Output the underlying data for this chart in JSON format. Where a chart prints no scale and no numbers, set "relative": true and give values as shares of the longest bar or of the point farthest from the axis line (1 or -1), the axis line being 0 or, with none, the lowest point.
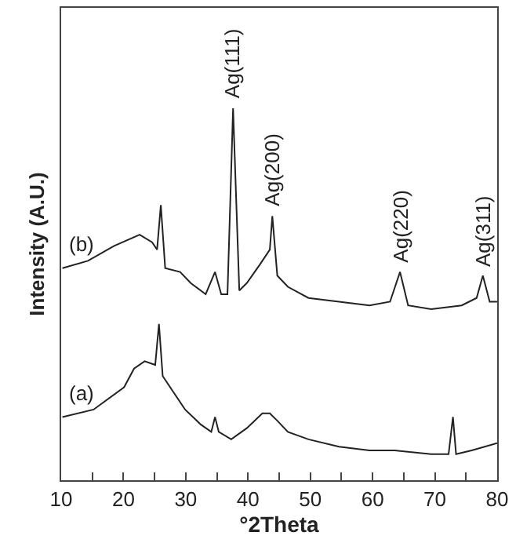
{
  "chart_data": {
    "type": "line",
    "relative": true,
    "xlabel": "°2Theta",
    "ylabel": "Intensity (A.U.)",
    "xlim": [
      10,
      80
    ],
    "xticks": [
      10,
      {
        "value": 15,
        "label": null
      },
      20,
      {
        "value": 25,
        "label": null
      },
      30,
      {
        "value": 35,
        "label": null
      },
      40,
      {
        "value": 45,
        "label": null
      },
      50,
      {
        "value": 55,
        "label": null
      },
      60,
      {
        "value": 65,
        "label": null
      },
      70,
      {
        "value": 75,
        "label": null
      },
      80
    ],
    "grid": false,
    "legend": false,
    "marker": "none",
    "line_style": "solid",
    "series": [
      {
        "name": "(b)",
        "color": "#222222",
        "x": [
          10.2,
          14.3,
          18.5,
          22.6,
          24.6,
          25.4,
          26,
          26.7,
          29.1,
          30.8,
          33.2,
          34.7,
          35.7,
          36.7,
          37.6,
          38.6,
          39.8,
          41.9,
          43.5,
          43.9,
          44.7,
          46.4,
          49.7,
          54.6,
          59.5,
          62.8,
          64.4,
          65.7,
          69.4,
          74.3,
          76.7,
          77.7,
          78.8,
          80
        ],
        "values": [
          0.57,
          0.59,
          0.63,
          0.66,
          0.64,
          0.62,
          0.74,
          0.57,
          0.56,
          0.53,
          0.5,
          0.56,
          0.5,
          0.5,
          1,
          0.51,
          0.53,
          0.58,
          0.62,
          0.71,
          0.55,
          0.52,
          0.49,
          0.48,
          0.47,
          0.48,
          0.56,
          0.47,
          0.46,
          0.47,
          0.49,
          0.55,
          0.48,
          0.48
        ]
      },
      {
        "name": "(a)",
        "color": "#222222",
        "x": [
          10.2,
          15.2,
          20.1,
          21.7,
          23.4,
          25.1,
          25.7,
          26.3,
          27.9,
          29.9,
          32.4,
          34.1,
          34.7,
          35.3,
          37.3,
          39.8,
          42.3,
          43.5,
          44.7,
          46.4,
          49.7,
          54.6,
          59.5,
          63.6,
          69.4,
          72.2,
          72.9,
          73.4,
          75.9,
          80
        ],
        "values": [
          0.17,
          0.19,
          0.25,
          0.3,
          0.32,
          0.31,
          0.42,
          0.28,
          0.24,
          0.19,
          0.15,
          0.13,
          0.17,
          0.13,
          0.11,
          0.14,
          0.18,
          0.18,
          0.16,
          0.13,
          0.11,
          0.09,
          0.08,
          0.08,
          0.07,
          0.07,
          0.17,
          0.07,
          0.08,
          0.1
        ]
      }
    ],
    "annotations": [
      {
        "text": "Ag(111)",
        "x": 37.6,
        "y": 1
      },
      {
        "text": "Ag(200)",
        "x": 43.9,
        "y": 0.71
      },
      {
        "text": "Ag(220)",
        "x": 64.4,
        "y": 0.56
      },
      {
        "text": "Ag(311)",
        "x": 77.7,
        "y": 0.55
      }
    ]
  }
}
